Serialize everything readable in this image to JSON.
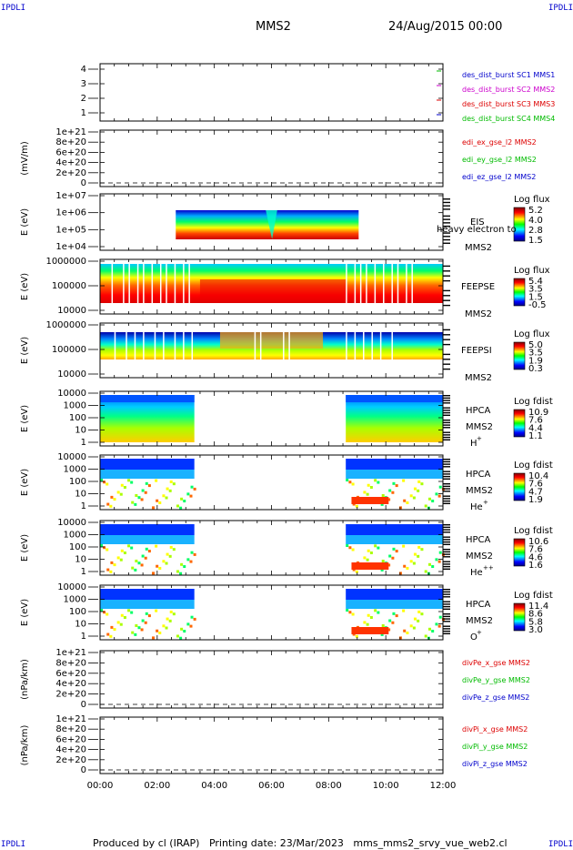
{
  "corner_label": "IPDLI",
  "header": {
    "mission": "MMS2",
    "date_time": "24/Aug/2015 00:00"
  },
  "footer": "Produced by cl (IRAP)   Printing date: 23/Mar/2023   mms_mms2_srvy_vue_web2.cl",
  "colors": {
    "red": "#dd0000",
    "magenta": "#cc00cc",
    "green": "#00bb00",
    "blue": "#0000cc"
  },
  "chart_data": [
    {
      "type": "line",
      "panel": 1,
      "yticks": [
        "4",
        "3",
        "2",
        "1"
      ],
      "ylim": [
        0.6,
        4.4
      ],
      "ylabel": "",
      "legend": [
        {
          "text": "des_dist_burst SC1 MMS1",
          "color": "#0000cc"
        },
        {
          "text": "des_dist_burst SC2 MMS2",
          "color": "#cc00cc"
        },
        {
          "text": "des_dist_burst SC3 MMS3",
          "color": "#dd0000"
        },
        {
          "text": "des_dist_burst SC4 MMS4",
          "color": "#00bb00"
        }
      ]
    },
    {
      "type": "line",
      "panel": 2,
      "yticks": [
        "1e+21",
        "8e+20",
        "6e+20",
        "4e+20",
        "2e+20",
        "0"
      ],
      "ylabel": "(mV/m)",
      "legend": [
        {
          "text": "edi_ex_gse_l2 MMS2",
          "color": "#dd0000"
        },
        {
          "text": "edi_ey_gse_l2 MMS2",
          "color": "#00bb00"
        },
        {
          "text": "edi_ez_gse_l2 MMS2",
          "color": "#0000cc"
        }
      ]
    },
    {
      "type": "heatmap",
      "panel": 3,
      "yticks": [
        "1e+07",
        "1e+06",
        "1e+05",
        "1e+04"
      ],
      "ylabel": "E (eV)",
      "instrument": [
        "EIS",
        "heavy electron to"
      ],
      "spacecraft": "MMS2",
      "colorbar_title": "Log flux",
      "colorbar_ticks": [
        "5.2",
        "4.0",
        "2.8",
        "1.5"
      ],
      "data_range_hours": [
        2.6,
        9.0
      ]
    },
    {
      "type": "heatmap",
      "panel": 4,
      "yticks": [
        "1000000",
        "100000",
        "10000"
      ],
      "ylabel": "E (eV)",
      "instrument": [
        "FEEPSE"
      ],
      "spacecraft": "MMS2",
      "colorbar_title": "Log flux",
      "colorbar_ticks": [
        "5.4",
        "3.5",
        "1.5",
        "-0.5"
      ]
    },
    {
      "type": "heatmap",
      "panel": 5,
      "yticks": [
        "1000000",
        "100000",
        "10000"
      ],
      "ylabel": "E (eV)",
      "instrument": [
        "FEEPSI"
      ],
      "spacecraft": "MMS2",
      "colorbar_title": "Log flux",
      "colorbar_ticks": [
        "5.0",
        "3.5",
        "1.9",
        "0.3"
      ]
    },
    {
      "type": "heatmap",
      "panel": 6,
      "yticks": [
        "10000",
        "1000",
        "100",
        "10",
        "1"
      ],
      "ylabel": "E (eV)",
      "instrument": [
        "HPCA",
        "MMS2"
      ],
      "species": "H",
      "species_sup": "+",
      "colorbar_title": "Log fdist",
      "colorbar_ticks": [
        "10.9",
        "7.6",
        "4.4",
        "1.1"
      ],
      "data_range_hours": [
        [
          0.0,
          3.3
        ],
        [
          8.6,
          12.0
        ]
      ]
    },
    {
      "type": "heatmap",
      "panel": 7,
      "yticks": [
        "10000",
        "1000",
        "100",
        "10",
        "1"
      ],
      "ylabel": "E (eV)",
      "instrument": [
        "HPCA",
        "MMS2"
      ],
      "species": "He",
      "species_sup": "+",
      "colorbar_title": "Log fdist",
      "colorbar_ticks": [
        "10.4",
        "7.6",
        "4.7",
        "1.9"
      ],
      "data_range_hours": [
        [
          0.0,
          3.3
        ],
        [
          8.6,
          12.0
        ]
      ]
    },
    {
      "type": "heatmap",
      "panel": 8,
      "yticks": [
        "10000",
        "1000",
        "100",
        "10",
        "1"
      ],
      "ylabel": "E (eV)",
      "instrument": [
        "HPCA",
        "MMS2"
      ],
      "species": "He",
      "species_sup": "++",
      "colorbar_title": "Log fdist",
      "colorbar_ticks": [
        "10.6",
        "7.6",
        "4.6",
        "1.6"
      ],
      "data_range_hours": [
        [
          0.0,
          3.3
        ],
        [
          8.6,
          12.0
        ]
      ]
    },
    {
      "type": "heatmap",
      "panel": 9,
      "yticks": [
        "10000",
        "1000",
        "100",
        "10",
        "1"
      ],
      "ylabel": "E (eV)",
      "instrument": [
        "HPCA",
        "MMS2"
      ],
      "species": "O",
      "species_sup": "+",
      "colorbar_title": "Log fdist",
      "colorbar_ticks": [
        "11.4",
        "8.6",
        "5.8",
        "3.0"
      ],
      "data_range_hours": [
        [
          0.0,
          3.3
        ],
        [
          8.6,
          12.0
        ]
      ]
    },
    {
      "type": "line",
      "panel": 10,
      "yticks": [
        "1e+21",
        "8e+20",
        "6e+20",
        "4e+20",
        "2e+20",
        "0"
      ],
      "ylabel": "(nPa/km)",
      "legend": [
        {
          "text": "divPe_x_gse MMS2",
          "color": "#dd0000"
        },
        {
          "text": "divPe_y_gse MMS2",
          "color": "#00bb00"
        },
        {
          "text": "divPe_z_gse MMS2",
          "color": "#0000cc"
        }
      ]
    },
    {
      "type": "line",
      "panel": 11,
      "yticks": [
        "1e+21",
        "8e+20",
        "6e+20",
        "4e+20",
        "2e+20",
        "0"
      ],
      "ylabel": "(nPa/km)",
      "legend": [
        {
          "text": "divPi_x_gse MMS2",
          "color": "#dd0000"
        },
        {
          "text": "divPi_y_gse MMS2",
          "color": "#00bb00"
        },
        {
          "text": "divPi_z_gse MMS2",
          "color": "#0000cc"
        }
      ]
    }
  ],
  "x_axis": {
    "ticks": [
      "00:00",
      "02:00",
      "04:00",
      "06:00",
      "08:00",
      "10:00",
      "12:00"
    ],
    "xlim_hours": [
      0,
      12
    ]
  }
}
